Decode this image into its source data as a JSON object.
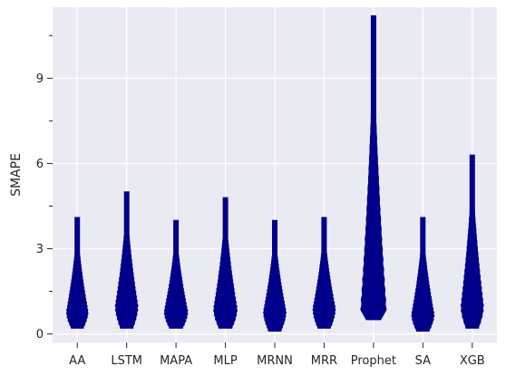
{
  "chart_data": {
    "type": "violin",
    "ylabel": "SMAPE",
    "xlabel": "",
    "ylim": [
      -0.3,
      11.5
    ],
    "yticks": [
      0,
      3,
      6,
      9
    ],
    "grid": true,
    "color": "#00008b",
    "background": "#eaeaf2",
    "categories": [
      "AA",
      "LSTM",
      "MAPA",
      "MLP",
      "MRNN",
      "MRR",
      "Prophet",
      "SA",
      "XGB"
    ],
    "series": [
      {
        "category": "AA",
        "min": 0.2,
        "max": 4.1,
        "peak": 0.8,
        "width": 0.44
      },
      {
        "category": "LSTM",
        "min": 0.2,
        "max": 5.0,
        "peak": 1.0,
        "width": 0.46
      },
      {
        "category": "MAPA",
        "min": 0.2,
        "max": 4.0,
        "peak": 0.8,
        "width": 0.48
      },
      {
        "category": "MLP",
        "min": 0.2,
        "max": 4.8,
        "peak": 0.9,
        "width": 0.48
      },
      {
        "category": "MRNN",
        "min": 0.1,
        "max": 4.0,
        "peak": 0.8,
        "width": 0.46
      },
      {
        "category": "MRR",
        "min": 0.2,
        "max": 4.1,
        "peak": 0.9,
        "width": 0.46
      },
      {
        "category": "Prophet",
        "min": 0.5,
        "max": 11.2,
        "peak": 0.9,
        "width": 0.52
      },
      {
        "category": "SA",
        "min": 0.1,
        "max": 4.1,
        "peak": 0.7,
        "width": 0.46
      },
      {
        "category": "XGB",
        "min": 0.2,
        "max": 6.3,
        "peak": 1.0,
        "width": 0.46
      }
    ]
  }
}
